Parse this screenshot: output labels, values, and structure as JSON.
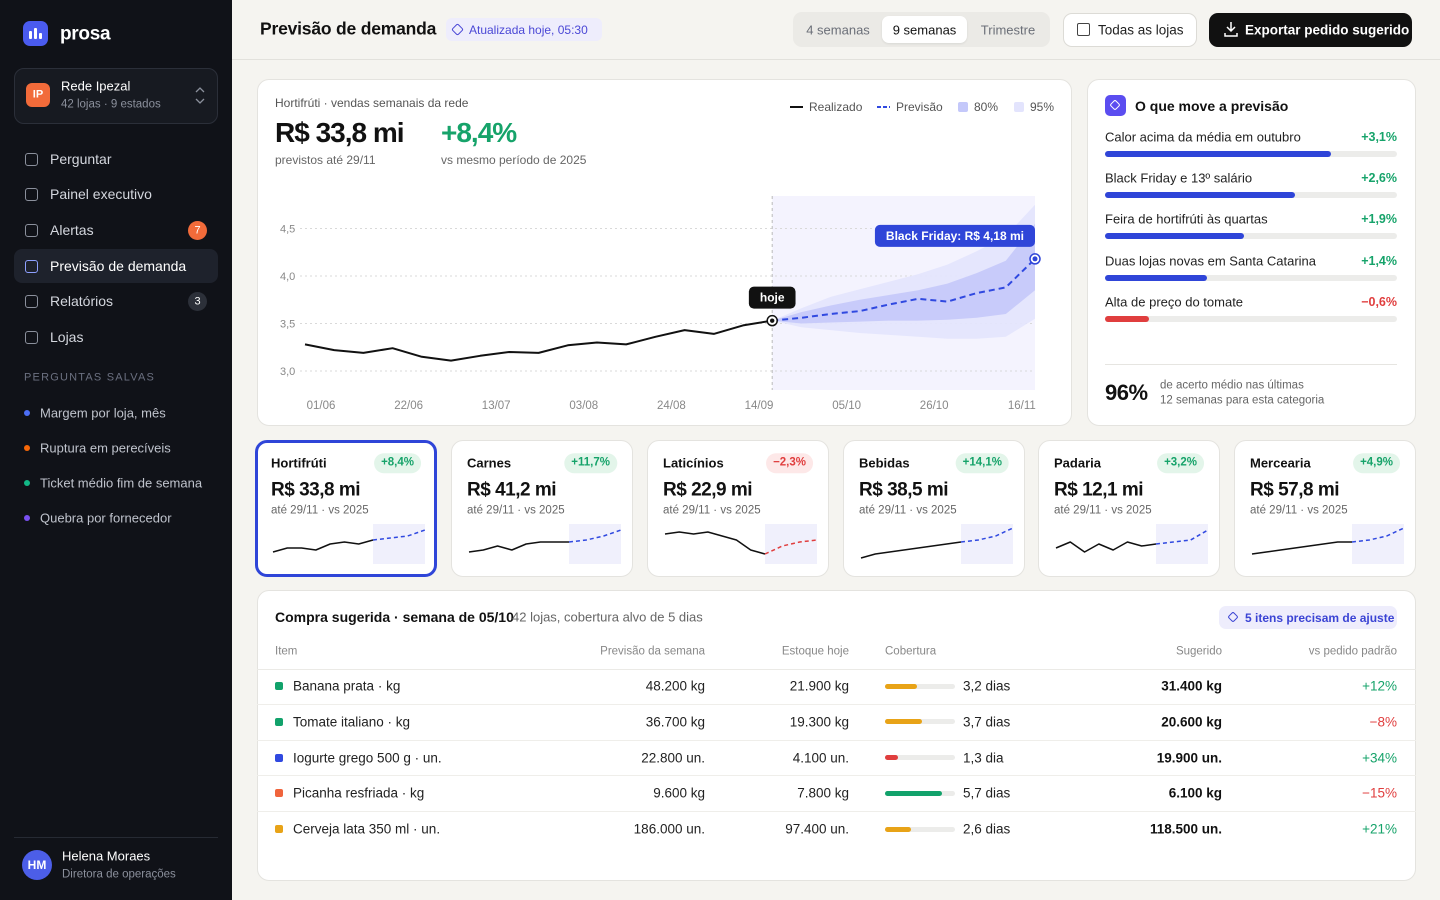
{
  "brand": "prosa",
  "org": {
    "initials": "IP",
    "name": "Rede Ipezal",
    "detail": "42 lojas · 9 estados"
  },
  "nav": [
    {
      "label": "Perguntar"
    },
    {
      "label": "Painel executivo"
    },
    {
      "label": "Alertas",
      "badge": "7",
      "badge_color": "#f26b3a"
    },
    {
      "label": "Previsão de demanda",
      "active": true
    },
    {
      "label": "Relatórios",
      "badge": "3",
      "badge_color": "#2c3039"
    },
    {
      "label": "Lojas"
    }
  ],
  "saved_title": "PERGUNTAS SALVAS",
  "saved": [
    {
      "label": "Margem por loja, mês",
      "color": "#4c6ef5"
    },
    {
      "label": "Ruptura em perecíveis",
      "color": "#f76707"
    },
    {
      "label": "Ticket médio fim de semana",
      "color": "#12b886"
    },
    {
      "label": "Quebra por fornecedor",
      "color": "#7950f2"
    }
  ],
  "user": {
    "initials": "HM",
    "name": "Helena Moraes",
    "role": "Diretora de operações"
  },
  "header": {
    "title": "Previsão de demanda",
    "updated": "Atualizada hoje, 05:30",
    "tabs": [
      "4 semanas",
      "9 semanas",
      "Trimestre"
    ],
    "active_tab": 1,
    "store_filter": "Todas as lojas",
    "export": "Exportar pedido sugerido"
  },
  "chart_data": {
    "type": "line",
    "subtitle": "Hortifrúti · vendas semanais da rede",
    "headline": "R$ 33,8 mi",
    "headline_note": "previstos até 29/11",
    "change": "+8,4%",
    "change_note": "vs mesmo período de 2025",
    "categories": [
      "01/06",
      null,
      null,
      "22/06",
      null,
      null,
      "13/07",
      null,
      null,
      "03/08",
      null,
      null,
      "24/08",
      null,
      null,
      "14/09",
      null,
      null,
      "05/10",
      null,
      null,
      "26/10",
      null,
      null,
      "16/11",
      null
    ],
    "series": [
      {
        "name": "Realizado",
        "color": "#111111",
        "values": [
          3.28,
          3.22,
          3.19,
          3.24,
          3.15,
          3.11,
          3.16,
          3.2,
          3.19,
          3.27,
          3.3,
          3.28,
          3.36,
          3.43,
          3.39,
          3.48,
          3.53,
          null,
          null,
          null,
          null,
          null,
          null,
          null,
          null,
          null
        ]
      },
      {
        "name": "Previsão",
        "color": "#3049e0",
        "dashed": true,
        "values": [
          null,
          null,
          null,
          null,
          null,
          null,
          null,
          null,
          null,
          null,
          null,
          null,
          null,
          null,
          null,
          null,
          3.53,
          3.56,
          3.6,
          3.63,
          3.7,
          3.76,
          3.73,
          3.82,
          3.88,
          4.18
        ]
      }
    ],
    "bands": [
      {
        "name": "95%",
        "color": "#e3e4fd",
        "lower": [
          null,
          null,
          null,
          null,
          null,
          null,
          null,
          null,
          null,
          null,
          null,
          null,
          null,
          null,
          null,
          null,
          3.53,
          3.46,
          3.43,
          3.4,
          3.38,
          3.36,
          3.34,
          3.34,
          3.36,
          3.55
        ],
        "upper": [
          null,
          null,
          null,
          null,
          null,
          null,
          null,
          null,
          null,
          null,
          null,
          null,
          null,
          null,
          null,
          null,
          3.53,
          3.66,
          3.78,
          3.86,
          3.94,
          4.02,
          4.12,
          4.26,
          4.42,
          4.75
        ]
      },
      {
        "name": "80%",
        "color": "#c4c8fa",
        "lower": [
          null,
          null,
          null,
          null,
          null,
          null,
          null,
          null,
          null,
          null,
          null,
          null,
          null,
          null,
          null,
          null,
          3.53,
          3.5,
          3.51,
          3.52,
          3.53,
          3.53,
          3.54,
          3.56,
          3.6,
          3.85
        ],
        "upper": [
          null,
          null,
          null,
          null,
          null,
          null,
          null,
          null,
          null,
          null,
          null,
          null,
          null,
          null,
          null,
          null,
          3.53,
          3.62,
          3.69,
          3.75,
          3.8,
          3.85,
          3.92,
          4.03,
          4.16,
          4.55
        ]
      }
    ],
    "today_label": "hoje",
    "peak_label": "Black Friday: R$ 4,18 mi",
    "peak_color": "#2f45d8",
    "ylim": [
      2.8,
      4.8
    ],
    "yticks": [
      {
        "value": 3,
        "label": "3,0"
      },
      {
        "value": 3.5,
        "label": "3,5"
      },
      {
        "value": 4,
        "label": "4,0"
      },
      {
        "value": 4.5,
        "label": "4,5"
      }
    ],
    "grid": true
  },
  "drivers": {
    "title": "O que move a previsão",
    "xlim": [
      0,
      4
    ],
    "items": [
      {
        "label": "Calor acima da média em outubro",
        "value": 3.1,
        "value_label": "+3,1%"
      },
      {
        "label": "Black Friday e 13º salário",
        "value": 2.6,
        "value_label": "+2,6%"
      },
      {
        "label": "Feira de hortifrúti às quartas",
        "value": 1.9,
        "value_label": "+1,9%"
      },
      {
        "label": "Duas lojas novas em Santa Catarina",
        "value": 1.4,
        "value_label": "+1,4%"
      },
      {
        "label": "Alta de preço do tomate",
        "value": -0.6,
        "value_label": "−0,6%"
      }
    ],
    "accuracy": "96%",
    "accuracy_note": [
      "de acerto médio nas últimas",
      "12 semanas para esta categoria"
    ]
  },
  "cards": [
    {
      "name": "Hortifrúti",
      "change": "+8,4%",
      "value": "R$ 33,8 mi",
      "note": "até 29/11 · vs 2025",
      "selected": true,
      "forecast_color": "#3049e0",
      "spark": [
        3,
        4,
        4,
        3.5,
        5,
        5.5,
        5,
        6
      ],
      "spark_forecast": [
        6,
        6.5,
        7,
        8.5
      ]
    },
    {
      "name": "Carnes",
      "change": "+11,7%",
      "value": "R$ 41,2 mi",
      "note": "até 29/11 · vs 2025",
      "forecast_color": "#3049e0",
      "spark": [
        3,
        3.5,
        4.5,
        3.5,
        5,
        5.5,
        5.5,
        5.5
      ],
      "spark_forecast": [
        5.5,
        6,
        7,
        8.5
      ]
    },
    {
      "name": "Laticínios",
      "change": "−2,3%",
      "value": "R$ 22,9 mi",
      "note": "até 29/11 · vs 2025",
      "forecast_color": "#e03e3e",
      "spark": [
        7.5,
        8,
        7.5,
        8,
        7,
        6,
        3.5,
        2.5
      ],
      "spark_forecast": [
        2.5,
        4.5,
        5.5,
        6
      ]
    },
    {
      "name": "Bebidas",
      "change": "+14,1%",
      "value": "R$ 38,5 mi",
      "note": "até 29/11 · vs 2025",
      "forecast_color": "#3049e0",
      "spark": [
        1.5,
        2.5,
        3,
        3.5,
        4,
        4.5,
        5,
        5.5
      ],
      "spark_forecast": [
        5.5,
        6,
        7,
        9
      ]
    },
    {
      "name": "Padaria",
      "change": "+3,2%",
      "value": "R$ 12,1 mi",
      "note": "até 29/11 · vs 2025",
      "forecast_color": "#3049e0",
      "spark": [
        4,
        5.5,
        3,
        5,
        3.5,
        5.5,
        4.5,
        5
      ],
      "spark_forecast": [
        5,
        5.5,
        6,
        8.5
      ]
    },
    {
      "name": "Mercearia",
      "change": "+4,9%",
      "value": "R$ 57,8 mi",
      "note": "até 29/11 · vs 2025",
      "forecast_color": "#3049e0",
      "spark": [
        2.5,
        3,
        3.5,
        4,
        4.5,
        5,
        5.5,
        5.5
      ],
      "spark_forecast": [
        5.5,
        6,
        7,
        9
      ]
    }
  ],
  "spark_ylim": [
    0,
    10
  ],
  "table": {
    "title": "Compra sugerida · semana de 05/10",
    "subtitle": "42 lojas, cobertura alvo de 5 dias",
    "alert": "5 itens precisam de ajuste",
    "columns": [
      "Item",
      "Previsão da semana",
      "Estoque hoje",
      "Cobertura",
      "Sugerido",
      "vs pedido padrão"
    ],
    "coverage_xlim": [
      0,
      7
    ],
    "rows": [
      {
        "item": "Banana prata · kg",
        "color": "#12a26b",
        "forecast": "48.200 kg",
        "stock": "21.900 kg",
        "coverage": 3.2,
        "coverage_label": "3,2 dias",
        "coverage_color": "#e8a317",
        "suggested": "31.400 kg",
        "vs": "+12%"
      },
      {
        "item": "Tomate italiano · kg",
        "color": "#12a26b",
        "forecast": "36.700 kg",
        "stock": "19.300 kg",
        "coverage": 3.7,
        "coverage_label": "3,7 dias",
        "coverage_color": "#e8a317",
        "suggested": "20.600 kg",
        "vs": "−8%"
      },
      {
        "item": "Iogurte grego 500 g · un.",
        "color": "#3049e0",
        "forecast": "22.800 un.",
        "stock": "4.100 un.",
        "coverage": 1.3,
        "coverage_label": "1,3 dia",
        "coverage_color": "#e03e3e",
        "suggested": "19.900 un.",
        "vs": "+34%"
      },
      {
        "item": "Picanha resfriada · kg",
        "color": "#f0643c",
        "forecast": "9.600 kg",
        "stock": "7.800 kg",
        "coverage": 5.7,
        "coverage_label": "5,7 dias",
        "coverage_color": "#12a26b",
        "suggested": "6.100 kg",
        "vs": "−15%"
      },
      {
        "item": "Cerveja lata 350 ml · un.",
        "color": "#e8a317",
        "forecast": "186.000 un.",
        "stock": "97.400 un.",
        "coverage": 2.6,
        "coverage_label": "2,6 dias",
        "coverage_color": "#e8a317",
        "suggested": "118.500 un.",
        "vs": "+21%"
      }
    ]
  }
}
